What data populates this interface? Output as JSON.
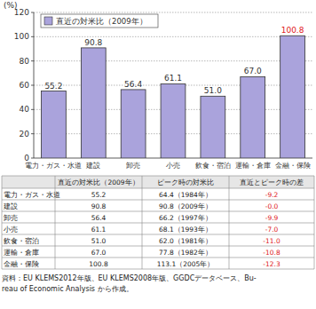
{
  "chart_data": {
    "type": "bar",
    "y_label": "(%)",
    "categories": [
      "電力・ガス・水道",
      "建設",
      "卸売",
      "小売",
      "飲食・宿泊",
      "運輸・倉庫",
      "金融・保険"
    ],
    "series": [
      {
        "name": "直近の対米比（2009年）",
        "color": "#aaa3dc",
        "values": [
          55.2,
          90.8,
          56.4,
          61.1,
          51.0,
          67.0,
          100.8
        ],
        "value_labels": [
          "55.2",
          "90.8",
          "56.4",
          "61.1",
          "51.0",
          "67.0",
          "100.8"
        ]
      }
    ],
    "ylim": [
      0,
      120
    ],
    "yticks": [
      0,
      20,
      40,
      60,
      80,
      100,
      120
    ],
    "grid": true,
    "legend": "top-left",
    "data_labels": true
  },
  "table": {
    "header": [
      "直近の対米比（2009年）",
      "ピーク時の対米比",
      "直近とピーク時の差"
    ],
    "rows": [
      [
        "電力・ガス・水道",
        "55.2",
        "64.4（1984年）",
        "-9.2"
      ],
      [
        "建設",
        "90.8",
        "90.8（2009年）",
        "-0.0"
      ],
      [
        "卸売",
        "56.4",
        "66.2（1997年）",
        "-9.9"
      ],
      [
        "小売",
        "61.1",
        "68.1（1993年）",
        "-7.0"
      ],
      [
        "飲食・宿泊",
        "51.0",
        "62.0（1981年）",
        "-11.0"
      ],
      [
        "運輸・倉庫",
        "67.0",
        "77.8（1982年）",
        "-10.8"
      ],
      [
        "金融・保険",
        "100.8",
        "113.1（2005年）",
        "-12.3"
      ]
    ]
  },
  "source": [
    "資料：EU KLEMS2012年版、EU KLEMS2008年版、GGDCデータベース、Bu-",
    "reau of Economic Analysis から作成。"
  ]
}
